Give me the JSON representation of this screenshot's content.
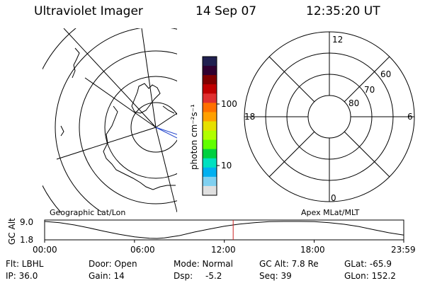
{
  "header": {
    "title": "Ultraviolet Imager",
    "date": "14 Sep 07",
    "time": "12:35:20 UT"
  },
  "left_panel": {
    "label": "Geographic Lat/Lon"
  },
  "right_panel": {
    "label": "Apex MLat/MLT",
    "mlt_labels": [
      "12",
      "18",
      "6",
      "0"
    ],
    "mlat_labels": [
      "60",
      "70",
      "80"
    ]
  },
  "colorbar": {
    "label": "photon cm⁻²s⁻¹",
    "tick_labels": [
      "100",
      "10"
    ],
    "scale": "log",
    "colors": [
      "#202050",
      "#300030",
      "#800000",
      "#c00000",
      "#e03030",
      "#ff7000",
      "#ffa000",
      "#e6e000",
      "#b0ff00",
      "#60ff00",
      "#00d040",
      "#00e0c0",
      "#00b0f0",
      "#80d0f0",
      "#e0e0e0"
    ]
  },
  "orbit_plot": {
    "ylabel": "GC Alt",
    "ytick_labels": [
      "9.0",
      "1.8"
    ]
  },
  "footer": {
    "filt": "Flt: LBHL",
    "ip": "IP: 36.0",
    "door": "Door: Open",
    "gain": "Gain: 14",
    "mode": "Mode: Normal",
    "dsp": "Dsp:",
    "dsp_value": "-5.2",
    "gcalt": "GC Alt: 7.8 Re",
    "seq": "Seq: 39",
    "glat": "GLat: -65.9",
    "glon": "GLon: 152.2"
  },
  "chart_data": {
    "type": "line",
    "xlabel": "",
    "ylabel": "GC Alt",
    "x_tick_labels": [
      "00:00",
      "06:00",
      "12:00",
      "18:00",
      "23:59"
    ],
    "x_hours": [
      0,
      1,
      2,
      3,
      4,
      5,
      6,
      7,
      7.5,
      8,
      9,
      10,
      11,
      12,
      13,
      14,
      15,
      16,
      17,
      18,
      19,
      20,
      21,
      22,
      23,
      23.98
    ],
    "series": [
      {
        "values": [
          9.0,
          8.5,
          7.5,
          6.2,
          4.8,
          3.5,
          2.5,
          1.9,
          1.8,
          2.0,
          3.0,
          4.5,
          5.8,
          7.0,
          7.9,
          8.5,
          8.9,
          9.0,
          9.0,
          8.9,
          8.5,
          7.8,
          6.8,
          5.5,
          4.2,
          3.2
        ]
      }
    ],
    "ylim": [
      1.8,
      9.0
    ],
    "xlim": [
      0,
      23.98
    ],
    "current_time_marker_hours": 12.59,
    "marker_color": "#cc2222"
  }
}
